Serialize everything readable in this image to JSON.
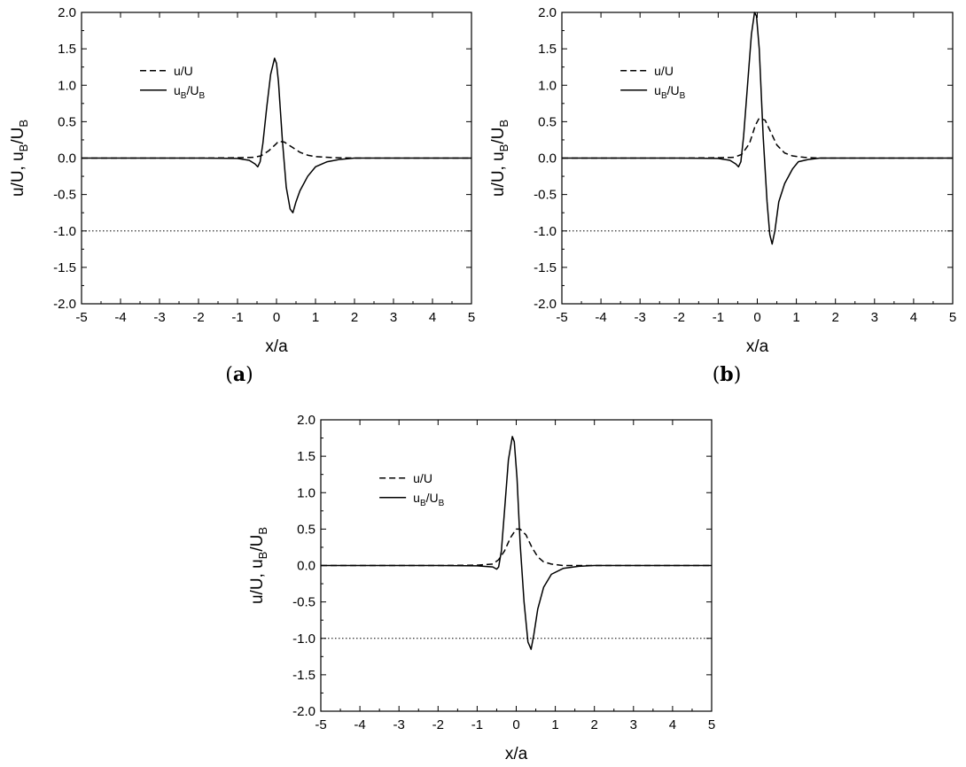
{
  "chart_data": [
    {
      "type": "line",
      "panel": "a",
      "caption_label": "a",
      "xlabel": "x/a",
      "ylabel": "u/U, u",
      "ylabel_sub1": "B",
      "ylabel_sep": "/U",
      "ylabel_sub2": "B",
      "xlim": [
        -5,
        5
      ],
      "ylim": [
        -2.0,
        2.0
      ],
      "xticks": [
        "-5",
        "-4",
        "-3",
        "-2",
        "-1",
        "0",
        "1",
        "2",
        "3",
        "4",
        "5"
      ],
      "yticks": [
        "2.0",
        "1.5",
        "1.0",
        "0.5",
        "0.0",
        "-0.5",
        "-1.0",
        "-1.5",
        "-2.0"
      ],
      "legend_position": "upper-left",
      "series": [
        {
          "name": "u/U",
          "style": "dashed",
          "x": [
            -5,
            -2,
            -1,
            -0.6,
            -0.4,
            -0.2,
            0,
            0.05,
            0.2,
            0.4,
            0.6,
            0.8,
            1.0,
            1.5,
            2,
            3,
            5
          ],
          "y": [
            0,
            0,
            0.005,
            0.01,
            0.03,
            0.1,
            0.2,
            0.23,
            0.22,
            0.15,
            0.08,
            0.04,
            0.02,
            0.005,
            0,
            0,
            0
          ]
        },
        {
          "name": "u",
          "name_sub1": "B",
          "name_sep": "/U",
          "name_sub2": "B",
          "style": "solid",
          "x": [
            -5,
            -2,
            -1,
            -0.7,
            -0.55,
            -0.48,
            -0.42,
            -0.35,
            -0.25,
            -0.15,
            -0.05,
            0,
            0.05,
            0.15,
            0.25,
            0.35,
            0.42,
            0.5,
            0.6,
            0.8,
            1.0,
            1.3,
            1.6,
            2,
            3,
            5
          ],
          "y": [
            0,
            0,
            -0.005,
            -0.03,
            -0.08,
            -0.12,
            -0.05,
            0.2,
            0.7,
            1.15,
            1.37,
            1.3,
            1.05,
            0.25,
            -0.4,
            -0.7,
            -0.75,
            -0.6,
            -0.45,
            -0.25,
            -0.12,
            -0.05,
            -0.02,
            0,
            0,
            0
          ]
        },
        {
          "name": "",
          "style": "dotted",
          "x": [
            -5,
            5
          ],
          "y": [
            -1,
            -1
          ]
        }
      ]
    },
    {
      "type": "line",
      "panel": "b",
      "caption_label": "b",
      "xlabel": "x/a",
      "ylabel": "u/U, u",
      "ylabel_sub1": "B",
      "ylabel_sep": "/U",
      "ylabel_sub2": "B",
      "xlim": [
        -5,
        5
      ],
      "ylim": [
        -2.0,
        2.0
      ],
      "xticks": [
        "-5",
        "-4",
        "-3",
        "-2",
        "-1",
        "0",
        "1",
        "2",
        "3",
        "4",
        "5"
      ],
      "yticks": [
        "2.0",
        "1.5",
        "1.0",
        "0.5",
        "0.0",
        "-0.5",
        "-1.0",
        "-1.5",
        "-2.0"
      ],
      "legend_position": "upper-left",
      "series": [
        {
          "name": "u/U",
          "style": "dashed",
          "x": [
            -5,
            -2,
            -1,
            -0.6,
            -0.4,
            -0.2,
            -0.05,
            0.05,
            0.2,
            0.35,
            0.5,
            0.7,
            0.9,
            1.2,
            1.6,
            2,
            3,
            5
          ],
          "y": [
            0,
            0,
            0.005,
            0.01,
            0.05,
            0.2,
            0.45,
            0.55,
            0.52,
            0.35,
            0.18,
            0.07,
            0.03,
            0.01,
            0,
            0,
            0,
            0
          ]
        },
        {
          "name": "u",
          "name_sub1": "B",
          "name_sep": "/U",
          "name_sub2": "B",
          "style": "solid",
          "x": [
            -5,
            -2,
            -1,
            -0.7,
            -0.55,
            -0.48,
            -0.42,
            -0.35,
            -0.25,
            -0.15,
            -0.07,
            -0.02,
            0.05,
            0.15,
            0.25,
            0.32,
            0.38,
            0.45,
            0.55,
            0.7,
            0.9,
            1.05,
            1.3,
            1.6,
            2,
            3,
            5
          ],
          "y": [
            0,
            0,
            -0.005,
            -0.03,
            -0.08,
            -0.12,
            -0.05,
            0.3,
            1.0,
            1.7,
            2.0,
            1.95,
            1.5,
            0.3,
            -0.6,
            -1.05,
            -1.18,
            -1.0,
            -0.6,
            -0.35,
            -0.15,
            -0.05,
            -0.02,
            0,
            0,
            0,
            0
          ]
        },
        {
          "name": "",
          "style": "dotted",
          "x": [
            -5,
            5
          ],
          "y": [
            -1,
            -1
          ]
        }
      ]
    },
    {
      "type": "line",
      "panel": "c",
      "xlabel": "x/a",
      "ylabel": "u/U, u",
      "ylabel_sub1": "B",
      "ylabel_sep": "/U",
      "ylabel_sub2": "B",
      "xlim": [
        -5,
        5
      ],
      "ylim": [
        -2.0,
        2.0
      ],
      "xticks": [
        "-5",
        "-4",
        "-3",
        "-2",
        "-1",
        "0",
        "1",
        "2",
        "3",
        "4",
        "5"
      ],
      "yticks": [
        "2.0",
        "1.5",
        "1.0",
        "0.5",
        "0.0",
        "-0.5",
        "-1.0",
        "-1.5",
        "-2.0"
      ],
      "legend_position": "upper-left",
      "series": [
        {
          "name": "u/U",
          "style": "dashed",
          "x": [
            -5,
            -2,
            -1,
            -0.6,
            -0.45,
            -0.3,
            -0.15,
            0,
            0.1,
            0.25,
            0.4,
            0.55,
            0.7,
            0.9,
            1.2,
            2,
            5
          ],
          "y": [
            0,
            0,
            0.005,
            0.02,
            0.08,
            0.2,
            0.38,
            0.5,
            0.5,
            0.42,
            0.25,
            0.12,
            0.05,
            0.02,
            0,
            0,
            0
          ]
        },
        {
          "name": "u",
          "name_sub1": "B",
          "name_sep": "/U",
          "name_sub2": "B",
          "style": "solid",
          "x": [
            -5,
            -2,
            -1,
            -0.6,
            -0.5,
            -0.45,
            -0.38,
            -0.3,
            -0.2,
            -0.1,
            -0.05,
            0.02,
            0.1,
            0.2,
            0.3,
            0.38,
            0.45,
            0.55,
            0.7,
            0.9,
            1.2,
            1.6,
            2,
            5
          ],
          "y": [
            0,
            0,
            -0.005,
            -0.02,
            -0.05,
            -0.02,
            0.2,
            0.75,
            1.45,
            1.77,
            1.7,
            1.2,
            0.3,
            -0.5,
            -1.05,
            -1.15,
            -0.95,
            -0.6,
            -0.3,
            -0.12,
            -0.04,
            -0.01,
            0,
            0
          ]
        },
        {
          "name": "",
          "style": "dotted",
          "x": [
            -5,
            5
          ],
          "y": [
            -1,
            -1
          ]
        }
      ]
    }
  ]
}
